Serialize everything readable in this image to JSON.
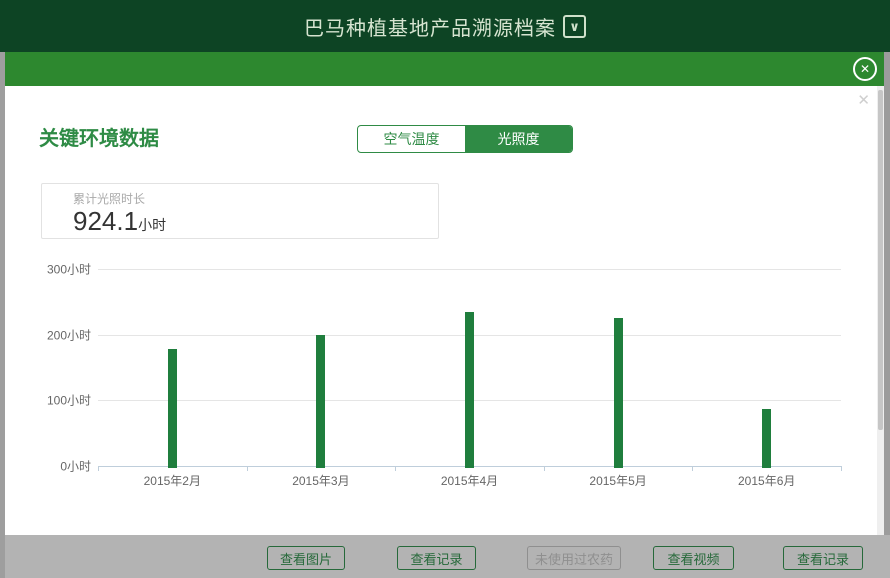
{
  "window": {
    "title": "巴马种植基地产品溯源档案",
    "title_icon": "∨"
  },
  "overlay": {
    "close_icon": "✕",
    "faint_close_icon": "✕"
  },
  "panel": {
    "heading": "关键环境数据",
    "tabs": [
      {
        "label": "空气温度",
        "active": false
      },
      {
        "label": "光照度",
        "active": true
      }
    ],
    "stat": {
      "label": "累计光照时长",
      "value": "924.1",
      "unit": "小时"
    }
  },
  "chart_data": {
    "type": "bar",
    "categories": [
      "2015年2月",
      "2015年3月",
      "2015年4月",
      "2015年5月",
      "2015年6月"
    ],
    "values": [
      178,
      200,
      235,
      225,
      86.1
    ],
    "unit": "小时",
    "ylim": [
      0,
      300
    ],
    "yticks": [
      {
        "value": 0,
        "label": "0小时"
      },
      {
        "value": 100,
        "label": "100小时"
      },
      {
        "value": 200,
        "label": "200小时"
      },
      {
        "value": 300,
        "label": "300小时"
      }
    ],
    "grid": true,
    "legend": false,
    "bar_color": "#1f7e3d"
  },
  "footer": {
    "buttons": [
      {
        "label": "查看图片",
        "disabled": false
      },
      {
        "label": "查看记录",
        "disabled": false
      },
      {
        "label": "未使用过农药",
        "disabled": true
      },
      {
        "label": "查看视频",
        "disabled": false
      },
      {
        "label": "查看记录",
        "disabled": false
      }
    ]
  },
  "colors": {
    "header_green": "#0d4424",
    "overlay_green": "#2d882f",
    "accent_green": "#2f8b45",
    "bar_green": "#1f7e3d",
    "footer_gray": "#b3b3b3"
  }
}
